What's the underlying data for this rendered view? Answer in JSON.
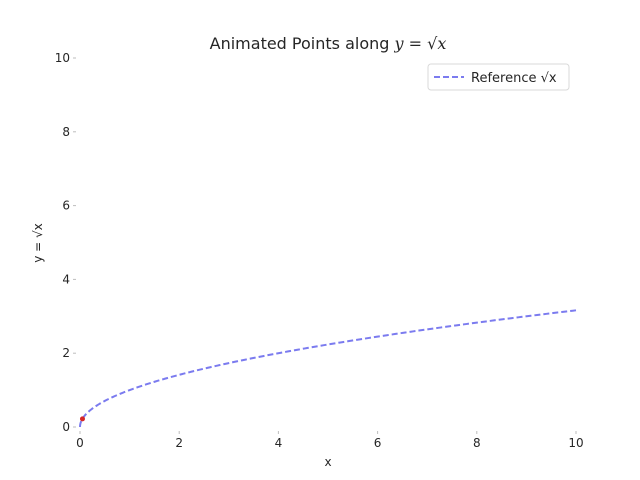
{
  "chart_data": {
    "type": "line",
    "title": "Animated Points along y = √x",
    "title_prefix": "Animated Points along ",
    "title_math": "y = √x",
    "xlabel": "x",
    "ylabel": "y = √x",
    "xlim": [
      0,
      10
    ],
    "ylim": [
      0,
      10
    ],
    "xticks": [
      0,
      2,
      4,
      6,
      8,
      10
    ],
    "yticks": [
      0,
      2,
      4,
      6,
      8,
      10
    ],
    "grid": false,
    "legend_position": "top-right",
    "series": [
      {
        "name": "Reference √x",
        "style": "dashed",
        "color": "#7b7bef",
        "function": "sqrt",
        "x_range": [
          0,
          10
        ]
      }
    ],
    "points": [
      {
        "x": 0.05,
        "y": 0.22,
        "color": "#d62728"
      }
    ]
  }
}
